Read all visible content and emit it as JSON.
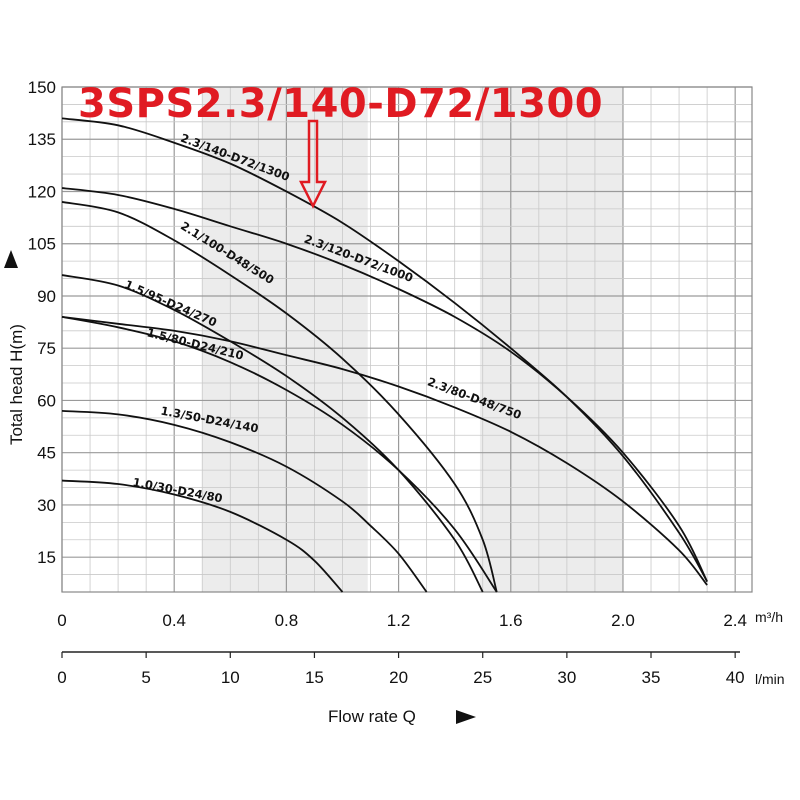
{
  "chart_data": {
    "type": "line",
    "title": "3SPS2.3/140-D72/1300",
    "ylabel": "Total head H(m)",
    "xlabel": "Flow rate Q",
    "x_unit_primary": "m³/h",
    "x_unit_secondary": "l/min",
    "ylim": [
      5,
      150
    ],
    "xlim": [
      0,
      2.46
    ],
    "y_ticks": [
      "150",
      "135",
      "120",
      "105",
      "90",
      "75",
      "60",
      "45",
      "30",
      "15"
    ],
    "x_ticks_m3h": [
      "0",
      "0.4",
      "0.8",
      "1.2",
      "1.6",
      "2.0",
      "2.4"
    ],
    "x_ticks_lmin": [
      "0",
      "5",
      "10",
      "15",
      "20",
      "25",
      "30",
      "35",
      "40"
    ],
    "grid": true,
    "shaded_bands_m3h": [
      [
        0.5,
        1.09
      ],
      [
        1.49,
        2.0
      ]
    ],
    "series": [
      {
        "name": "2.3/140-D72/1300",
        "x": [
          0,
          0.2,
          0.4,
          0.6,
          0.8,
          1.0,
          1.2,
          1.4,
          1.6,
          1.8,
          2.0,
          2.2,
          2.3
        ],
        "y": [
          141,
          139,
          134,
          128,
          120,
          111,
          100,
          88,
          75,
          61,
          44,
          22,
          8
        ]
      },
      {
        "name": "2.3/120-D72/1000",
        "x": [
          0,
          0.2,
          0.4,
          0.6,
          0.8,
          1.0,
          1.2,
          1.4,
          1.6,
          1.8,
          2.0,
          2.2,
          2.3
        ],
        "y": [
          121,
          119,
          115,
          110,
          105,
          99,
          92,
          84,
          74,
          61,
          45,
          24,
          8
        ]
      },
      {
        "name": "2.1/100-D48/500",
        "x": [
          0,
          0.2,
          0.4,
          0.6,
          0.8,
          1.0,
          1.2,
          1.4,
          1.5,
          1.55
        ],
        "y": [
          117,
          114,
          106,
          96,
          85,
          72,
          56,
          36,
          20,
          5
        ]
      },
      {
        "name": "1.5/95-D24/270",
        "x": [
          0,
          0.2,
          0.4,
          0.6,
          0.8,
          1.0,
          1.2,
          1.4,
          1.5
        ],
        "y": [
          96,
          93,
          86,
          77,
          67,
          55,
          40,
          20,
          5
        ]
      },
      {
        "name": "1.5/80-D24/210",
        "x": [
          0,
          0.2,
          0.4,
          0.6,
          0.8,
          1.0,
          1.2,
          1.4,
          1.55
        ],
        "y": [
          84,
          81,
          77,
          71,
          63,
          53,
          40,
          23,
          5
        ]
      },
      {
        "name": "2.3/80-D48/750",
        "x": [
          0,
          0.2,
          0.4,
          0.6,
          0.8,
          1.0,
          1.2,
          1.4,
          1.6,
          1.8,
          2.0,
          2.2,
          2.3
        ],
        "y": [
          84,
          82,
          80,
          77,
          73,
          69,
          64,
          58,
          51,
          42,
          31,
          17,
          7
        ]
      },
      {
        "name": "1.3/50-D24/140",
        "x": [
          0,
          0.2,
          0.4,
          0.6,
          0.8,
          1.0,
          1.1,
          1.2,
          1.3
        ],
        "y": [
          57,
          56,
          53,
          48,
          41,
          31,
          24,
          16,
          5
        ]
      },
      {
        "name": "1.0/30-D24/80",
        "x": [
          0,
          0.2,
          0.4,
          0.6,
          0.8,
          0.9,
          1.0
        ],
        "y": [
          37,
          36,
          33,
          28,
          20,
          14,
          5
        ]
      }
    ]
  }
}
